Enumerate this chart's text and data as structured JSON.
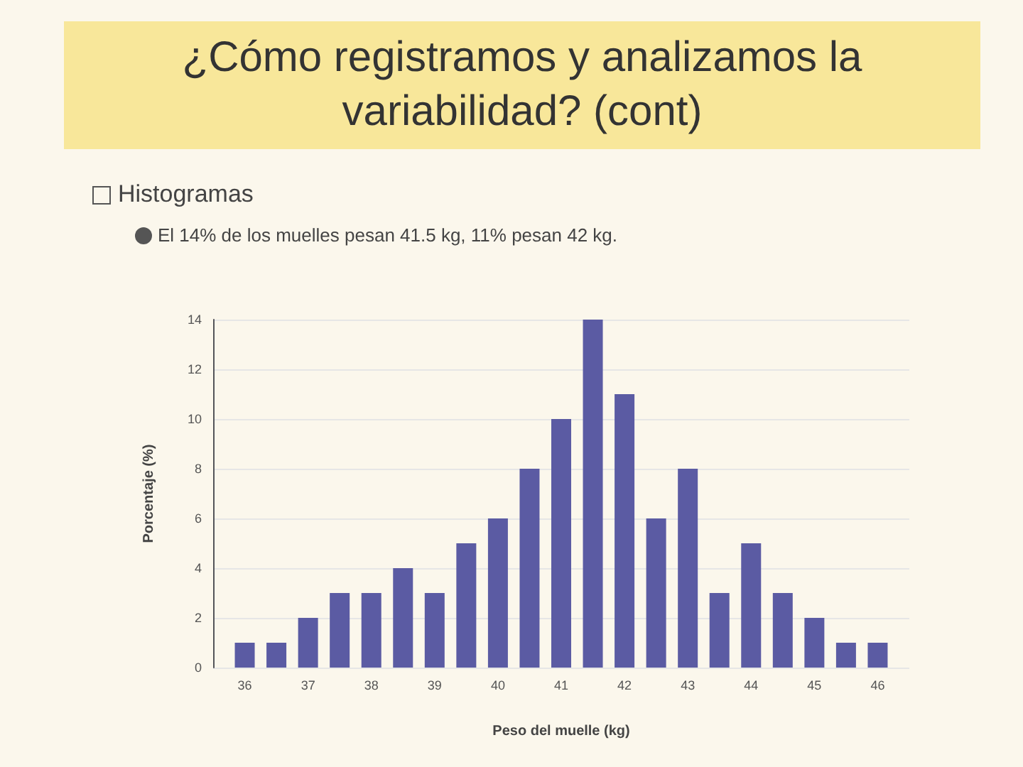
{
  "chart_data": {
    "type": "bar",
    "title": "¿Cómo registramos y analizamos la variabilidad? (cont)",
    "subtitle": "Histogramas",
    "annotations": [
      "El 14% de los muelles pesan 41.5 kg, 11% pesan 42 kg."
    ],
    "xlabel": "Peso del muelle (kg)",
    "ylabel": "Porcentaje (%)",
    "x": [
      36,
      36.5,
      37,
      37.5,
      38,
      38.5,
      39,
      39.5,
      40,
      40.5,
      41,
      41.5,
      42,
      42.5,
      43,
      43.5,
      44,
      44.5,
      45,
      45.5,
      46
    ],
    "values": [
      1,
      1,
      2,
      3,
      3,
      4,
      3,
      5,
      6,
      8,
      10,
      14,
      11,
      6,
      8,
      3,
      5,
      3,
      2,
      1,
      1
    ],
    "color": "#5b5ba3",
    "xlim": [
      35.5,
      46.5
    ],
    "xticks": [
      36,
      37,
      38,
      39,
      40,
      41,
      42,
      43,
      44,
      45,
      46
    ],
    "ylim": [
      0,
      14
    ],
    "yticks": [
      0,
      2,
      4,
      6,
      8,
      10,
      12,
      14
    ],
    "grid": "y"
  }
}
